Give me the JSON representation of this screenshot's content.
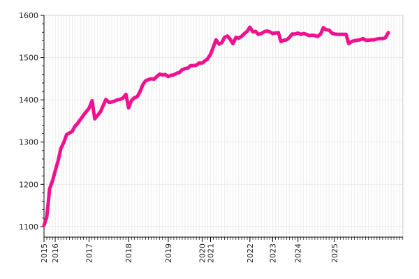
{
  "chart_data": {
    "type": "line",
    "title": "",
    "xlabel": "",
    "ylabel": "",
    "xlim": [
      2015.0,
      2025.6
    ],
    "ylim": [
      1075,
      1600
    ],
    "y_ticks": [
      "1100",
      "1200",
      "1300",
      "1400",
      "1500",
      "1600"
    ],
    "x_ticks": [
      {
        "year": 2015.0,
        "label": "2015"
      },
      {
        "year": 2015.33,
        "label": "2016"
      },
      {
        "year": 2016.33,
        "label": "2017"
      },
      {
        "year": 2017.5,
        "label": "2018"
      },
      {
        "year": 2018.67,
        "label": "2019"
      },
      {
        "year": 2019.67,
        "label": "2020"
      },
      {
        "year": 2019.92,
        "label": "2021"
      },
      {
        "year": 2021.08,
        "label": "2022"
      },
      {
        "year": 2021.75,
        "label": "2023"
      },
      {
        "year": 2022.5,
        "label": "2024"
      },
      {
        "year": 2023.58,
        "label": "2025"
      }
    ],
    "grid": true,
    "series": [
      {
        "color": "#ee1190",
        "points": [
          [
            2015.0,
            1103
          ],
          [
            2015.08,
            1122
          ],
          [
            2015.17,
            1190
          ],
          [
            2015.25,
            1208
          ],
          [
            2015.42,
            1257
          ],
          [
            2015.5,
            1285
          ],
          [
            2015.58,
            1298
          ],
          [
            2015.67,
            1318
          ],
          [
            2015.83,
            1325
          ],
          [
            2015.92,
            1338
          ],
          [
            2016.0,
            1345
          ],
          [
            2016.17,
            1364
          ],
          [
            2016.25,
            1372
          ],
          [
            2016.33,
            1380
          ],
          [
            2016.42,
            1398
          ],
          [
            2016.5,
            1355
          ],
          [
            2016.58,
            1363
          ],
          [
            2016.67,
            1372
          ],
          [
            2016.75,
            1387
          ],
          [
            2016.83,
            1401
          ],
          [
            2016.92,
            1394
          ],
          [
            2017.0,
            1395
          ],
          [
            2017.08,
            1397
          ],
          [
            2017.17,
            1400
          ],
          [
            2017.25,
            1401
          ],
          [
            2017.33,
            1404
          ],
          [
            2017.42,
            1413
          ],
          [
            2017.5,
            1381
          ],
          [
            2017.58,
            1398
          ],
          [
            2017.67,
            1405
          ],
          [
            2017.75,
            1407
          ],
          [
            2017.83,
            1418
          ],
          [
            2017.92,
            1436
          ],
          [
            2018.0,
            1445
          ],
          [
            2018.08,
            1448
          ],
          [
            2018.17,
            1450
          ],
          [
            2018.25,
            1449
          ],
          [
            2018.33,
            1455
          ],
          [
            2018.42,
            1461
          ],
          [
            2018.5,
            1459
          ],
          [
            2018.58,
            1460
          ],
          [
            2018.67,
            1455
          ],
          [
            2018.75,
            1458
          ],
          [
            2018.83,
            1459
          ],
          [
            2018.92,
            1463
          ],
          [
            2019.0,
            1465
          ],
          [
            2019.08,
            1471
          ],
          [
            2019.17,
            1474
          ],
          [
            2019.25,
            1475
          ],
          [
            2019.33,
            1481
          ],
          [
            2019.42,
            1481
          ],
          [
            2019.5,
            1482
          ],
          [
            2019.58,
            1487
          ],
          [
            2019.67,
            1487
          ],
          [
            2019.75,
            1492
          ],
          [
            2019.83,
            1497
          ],
          [
            2019.92,
            1508
          ],
          [
            2020.0,
            1525
          ],
          [
            2020.08,
            1542
          ],
          [
            2020.17,
            1532
          ],
          [
            2020.25,
            1535
          ],
          [
            2020.33,
            1548
          ],
          [
            2020.42,
            1551
          ],
          [
            2020.5,
            1543
          ],
          [
            2020.58,
            1533
          ],
          [
            2020.67,
            1548
          ],
          [
            2020.75,
            1546
          ],
          [
            2020.83,
            1550
          ],
          [
            2020.92,
            1557
          ],
          [
            2021.0,
            1562
          ],
          [
            2021.08,
            1572
          ],
          [
            2021.17,
            1561
          ],
          [
            2021.25,
            1562
          ],
          [
            2021.33,
            1555
          ],
          [
            2021.42,
            1557
          ],
          [
            2021.5,
            1561
          ],
          [
            2021.58,
            1563
          ],
          [
            2021.67,
            1561
          ],
          [
            2021.75,
            1557
          ],
          [
            2021.83,
            1558
          ],
          [
            2021.92,
            1559
          ],
          [
            2022.0,
            1538
          ],
          [
            2022.08,
            1541
          ],
          [
            2022.17,
            1542
          ],
          [
            2022.25,
            1548
          ],
          [
            2022.33,
            1556
          ],
          [
            2022.42,
            1556
          ],
          [
            2022.5,
            1558
          ],
          [
            2022.58,
            1555
          ],
          [
            2022.67,
            1557
          ],
          [
            2022.75,
            1555
          ],
          [
            2022.83,
            1552
          ],
          [
            2022.92,
            1553
          ],
          [
            2023.0,
            1552
          ],
          [
            2023.08,
            1550
          ],
          [
            2023.17,
            1556
          ],
          [
            2023.25,
            1571
          ],
          [
            2023.33,
            1566
          ],
          [
            2023.42,
            1565
          ],
          [
            2023.5,
            1558
          ],
          [
            2023.58,
            1556
          ],
          [
            2023.67,
            1555
          ],
          [
            2023.75,
            1555
          ],
          [
            2023.83,
            1555
          ],
          [
            2023.92,
            1555
          ],
          [
            2024.0,
            1533
          ],
          [
            2024.08,
            1538
          ],
          [
            2024.17,
            1540
          ],
          [
            2024.25,
            1541
          ],
          [
            2024.33,
            1542
          ],
          [
            2024.42,
            1545
          ],
          [
            2024.5,
            1541
          ],
          [
            2024.58,
            1541
          ],
          [
            2024.67,
            1542
          ],
          [
            2024.75,
            1542
          ],
          [
            2024.83,
            1544
          ],
          [
            2024.92,
            1545
          ],
          [
            2025.0,
            1545
          ],
          [
            2025.08,
            1547
          ],
          [
            2025.17,
            1559
          ]
        ]
      }
    ]
  }
}
